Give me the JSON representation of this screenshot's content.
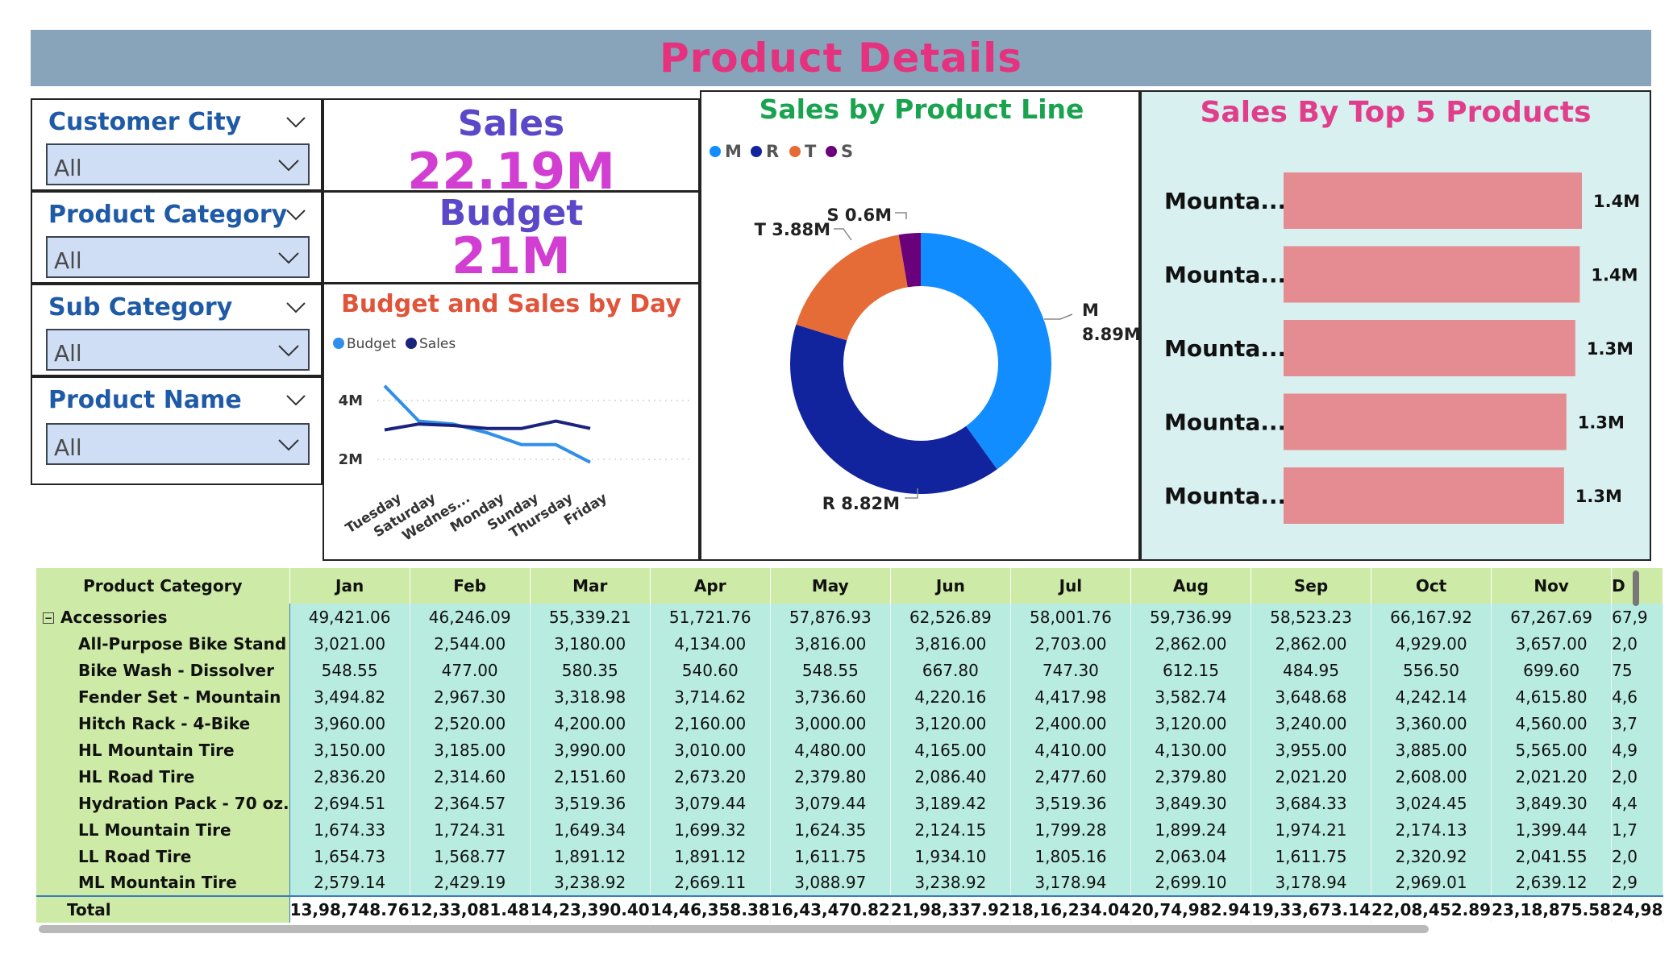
{
  "header": {
    "title": "Product Details"
  },
  "slicers": [
    {
      "label": "Customer City",
      "value": "All"
    },
    {
      "label": "Product Category",
      "value": "All"
    },
    {
      "label": "Sub Category",
      "value": "All"
    },
    {
      "label": "Product Name",
      "value": "All"
    }
  ],
  "kpis": {
    "sales": {
      "label": "Sales",
      "value": "22.19M"
    },
    "budget": {
      "label": "Budget",
      "value": "21M"
    }
  },
  "colors": {
    "header_bg": "#87a4ba",
    "title": "#e5327e",
    "kpi_label": "#5a48c8",
    "kpi_value": "#d23ed2",
    "line_budget": "#2f8fea",
    "line_sales": "#1a237e",
    "donut_M": "#118dff",
    "donut_R": "#12239e",
    "donut_T": "#e66c37",
    "donut_S": "#6b007b",
    "bar": "#e58c92"
  },
  "line_chart": {
    "title": "Budget and Sales by Day",
    "legend": [
      "Budget",
      "Sales"
    ],
    "y_ticks": [
      "4M",
      "2M"
    ],
    "chart_data": {
      "type": "line",
      "categories": [
        "Tuesday",
        "Saturday",
        "Wednes...",
        "Monday",
        "Sunday",
        "Thursday",
        "Friday"
      ],
      "series": [
        {
          "name": "Budget",
          "values": [
            4.5,
            3.3,
            3.2,
            2.9,
            2.5,
            2.5,
            1.9
          ]
        },
        {
          "name": "Sales",
          "values": [
            3.0,
            3.2,
            3.15,
            3.05,
            3.05,
            3.3,
            3.05
          ]
        }
      ],
      "ylim": [
        0,
        5.5
      ]
    }
  },
  "donut_chart": {
    "title": "Sales by Product Line",
    "legend": [
      "M",
      "R",
      "T",
      "S"
    ],
    "labels": {
      "M_name": "M",
      "M_value": "8.89M",
      "R": "R 8.82M",
      "T": "T 3.88M",
      "S": "S 0.6M"
    },
    "chart_data": {
      "type": "pie",
      "categories": [
        "M",
        "R",
        "T",
        "S"
      ],
      "values": [
        8.89,
        8.82,
        3.88,
        0.6
      ]
    }
  },
  "top5": {
    "title": "Sales By Top 5 Products",
    "chart_data": {
      "type": "bar",
      "categories": [
        "Mounta...",
        "Mounta...",
        "Mounta...",
        "Mounta...",
        "Mounta..."
      ],
      "values": [
        1.4,
        1.4,
        1.3,
        1.3,
        1.3
      ],
      "value_labels": [
        "1.4M",
        "1.4M",
        "1.3M",
        "1.3M",
        "1.3M"
      ],
      "bar_fractions": [
        1.0,
        0.993,
        0.978,
        0.948,
        0.94
      ]
    }
  },
  "table": {
    "headers": [
      "Product Category",
      "Jan",
      "Feb",
      "Mar",
      "Apr",
      "May",
      "Jun",
      "Jul",
      "Aug",
      "Sep",
      "Oct",
      "Nov",
      "D"
    ],
    "rows": [
      {
        "type": "group",
        "expand_symbol": "⊟",
        "name": "Accessories",
        "values": [
          "49,421.06",
          "46,246.09",
          "55,339.21",
          "51,721.76",
          "57,876.93",
          "62,526.89",
          "58,001.76",
          "59,736.99",
          "58,523.23",
          "66,167.92",
          "67,267.69",
          "67,9"
        ]
      },
      {
        "type": "child",
        "name": "All-Purpose Bike Stand",
        "values": [
          "3,021.00",
          "2,544.00",
          "3,180.00",
          "4,134.00",
          "3,816.00",
          "3,816.00",
          "2,703.00",
          "2,862.00",
          "2,862.00",
          "4,929.00",
          "3,657.00",
          "2,0"
        ]
      },
      {
        "type": "child",
        "name": "Bike Wash - Dissolver",
        "values": [
          "548.55",
          "477.00",
          "580.35",
          "540.60",
          "548.55",
          "667.80",
          "747.30",
          "612.15",
          "484.95",
          "556.50",
          "699.60",
          "75"
        ]
      },
      {
        "type": "child",
        "name": "Fender Set - Mountain",
        "values": [
          "3,494.82",
          "2,967.30",
          "3,318.98",
          "3,714.62",
          "3,736.60",
          "4,220.16",
          "4,417.98",
          "3,582.74",
          "3,648.68",
          "4,242.14",
          "4,615.80",
          "4,6"
        ]
      },
      {
        "type": "child",
        "name": "Hitch Rack - 4-Bike",
        "values": [
          "3,960.00",
          "2,520.00",
          "4,200.00",
          "2,160.00",
          "3,000.00",
          "3,120.00",
          "2,400.00",
          "3,120.00",
          "3,240.00",
          "3,360.00",
          "4,560.00",
          "3,7"
        ]
      },
      {
        "type": "child",
        "name": "HL Mountain Tire",
        "values": [
          "3,150.00",
          "3,185.00",
          "3,990.00",
          "3,010.00",
          "4,480.00",
          "4,165.00",
          "4,410.00",
          "4,130.00",
          "3,955.00",
          "3,885.00",
          "5,565.00",
          "4,9"
        ]
      },
      {
        "type": "child",
        "name": "HL Road Tire",
        "values": [
          "2,836.20",
          "2,314.60",
          "2,151.60",
          "2,673.20",
          "2,379.80",
          "2,086.40",
          "2,477.60",
          "2,379.80",
          "2,021.20",
          "2,608.00",
          "2,021.20",
          "2,0"
        ]
      },
      {
        "type": "child",
        "name": "Hydration Pack - 70 oz.",
        "values": [
          "2,694.51",
          "2,364.57",
          "3,519.36",
          "3,079.44",
          "3,079.44",
          "3,189.42",
          "3,519.36",
          "3,849.30",
          "3,684.33",
          "3,024.45",
          "3,849.30",
          "4,4"
        ]
      },
      {
        "type": "child",
        "name": "LL Mountain Tire",
        "values": [
          "1,674.33",
          "1,724.31",
          "1,649.34",
          "1,699.32",
          "1,624.35",
          "2,124.15",
          "1,799.28",
          "1,899.24",
          "1,974.21",
          "2,174.13",
          "1,399.44",
          "1,7"
        ]
      },
      {
        "type": "child",
        "name": "LL Road Tire",
        "values": [
          "1,654.73",
          "1,568.77",
          "1,891.12",
          "1,891.12",
          "1,611.75",
          "1,934.10",
          "1,805.16",
          "2,063.04",
          "1,611.75",
          "2,320.92",
          "2,041.55",
          "2,0"
        ]
      },
      {
        "type": "child",
        "name": "ML Mountain Tire",
        "values": [
          "2,579.14",
          "2,429.19",
          "3,238.92",
          "2,669.11",
          "3,088.97",
          "3,238.92",
          "3,178.94",
          "2,699.10",
          "3,178.94",
          "2,969.01",
          "2,639.12",
          "2,9"
        ]
      }
    ],
    "total": {
      "name": "Total",
      "values": [
        "13,98,748.76",
        "12,33,081.48",
        "14,23,390.40",
        "14,46,358.38",
        "16,43,470.82",
        "21,98,337.92",
        "18,16,234.04",
        "20,74,982.94",
        "19,33,673.14",
        "22,08,452.89",
        "23,18,875.58",
        "24,98"
      ]
    }
  }
}
